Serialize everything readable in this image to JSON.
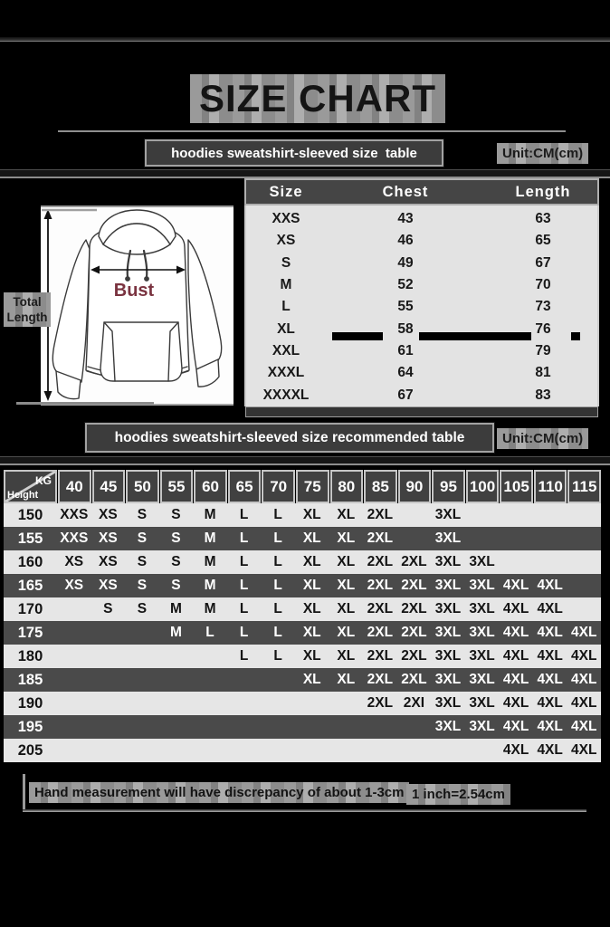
{
  "title": "SIZE CHART",
  "colors": {
    "bust_label": "#7a3340",
    "accent_dark": "#414141",
    "row_light": "#e6e6e6",
    "row_dark": "#4a4a4a"
  },
  "section1": {
    "header": "hoodies sweatshirt-sleeved size  table",
    "unit": "Unit:CM(cm)",
    "diagram": {
      "bust_label": "Bust",
      "length_label": "Total Length"
    },
    "table": {
      "columns": [
        "Size",
        "Chest",
        "Length"
      ],
      "rows": [
        [
          "XXS",
          "43",
          "63"
        ],
        [
          "XS",
          "46",
          "65"
        ],
        [
          "S",
          "49",
          "67"
        ],
        [
          "M",
          "52",
          "70"
        ],
        [
          "L",
          "55",
          "73"
        ],
        [
          "XL",
          "58",
          "76"
        ],
        [
          "XXL",
          "61",
          "79"
        ],
        [
          "XXXL",
          "64",
          "81"
        ],
        [
          "XXXXL",
          "67",
          "83"
        ]
      ]
    }
  },
  "section2": {
    "header": "hoodies sweatshirt-sleeved size recommended table",
    "unit": "Unit:CM(cm)",
    "matrix": {
      "corner": {
        "top": "KG",
        "bottom": "Height"
      },
      "weights": [
        "40",
        "45",
        "50",
        "55",
        "60",
        "65",
        "70",
        "75",
        "80",
        "85",
        "90",
        "95",
        "100",
        "105",
        "110",
        "115"
      ],
      "rows": [
        {
          "height": "150",
          "cells": [
            "XXS",
            "XS",
            "S",
            "S",
            "M",
            "L",
            "L",
            "XL",
            "XL",
            "2XL",
            "",
            "3XL",
            "",
            "",
            "",
            ""
          ]
        },
        {
          "height": "155",
          "cells": [
            "XXS",
            "XS",
            "S",
            "S",
            "M",
            "L",
            "L",
            "XL",
            "XL",
            "2XL",
            "",
            "3XL",
            "",
            "",
            "",
            ""
          ]
        },
        {
          "height": "160",
          "cells": [
            "XS",
            "XS",
            "S",
            "S",
            "M",
            "L",
            "L",
            "XL",
            "XL",
            "2XL",
            "2XL",
            "3XL",
            "3XL",
            "",
            "",
            ""
          ]
        },
        {
          "height": "165",
          "cells": [
            "XS",
            "XS",
            "S",
            "S",
            "M",
            "L",
            "L",
            "XL",
            "XL",
            "2XL",
            "2XL",
            "3XL",
            "3XL",
            "4XL",
            "4XL",
            ""
          ]
        },
        {
          "height": "170",
          "cells": [
            "",
            "S",
            "S",
            "M",
            "M",
            "L",
            "L",
            "XL",
            "XL",
            "2XL",
            "2XL",
            "3XL",
            "3XL",
            "4XL",
            "4XL",
            ""
          ]
        },
        {
          "height": "175",
          "cells": [
            "",
            "",
            "",
            "M",
            "L",
            "L",
            "L",
            "XL",
            "XL",
            "2XL",
            "2XL",
            "3XL",
            "3XL",
            "4XL",
            "4XL",
            "4XL"
          ]
        },
        {
          "height": "180",
          "cells": [
            "",
            "",
            "",
            "",
            "",
            "L",
            "L",
            "XL",
            "XL",
            "2XL",
            "2XL",
            "3XL",
            "3XL",
            "4XL",
            "4XL",
            "4XL"
          ]
        },
        {
          "height": "185",
          "cells": [
            "",
            "",
            "",
            "",
            "",
            "",
            "",
            "XL",
            "XL",
            "2XL",
            "2XL",
            "3XL",
            "3XL",
            "4XL",
            "4XL",
            "4XL"
          ]
        },
        {
          "height": "190",
          "cells": [
            "",
            "",
            "",
            "",
            "",
            "",
            "",
            "",
            "",
            "2XL",
            "2XI",
            "3XL",
            "3XL",
            "4XL",
            "4XL",
            "4XL"
          ]
        },
        {
          "height": "195",
          "cells": [
            "",
            "",
            "",
            "",
            "",
            "",
            "",
            "",
            "",
            "",
            "",
            "3XL",
            "3XL",
            "4XL",
            "4XL",
            "4XL"
          ]
        },
        {
          "height": "205",
          "cells": [
            "",
            "",
            "",
            "",
            "",
            "",
            "",
            "",
            "",
            "",
            "",
            "",
            "",
            "4XL",
            "4XL",
            "4XL"
          ]
        }
      ]
    }
  },
  "footer": {
    "note": "Hand measurement will have discrepancy of about 1-3cm",
    "conversion": "1 inch=2.54cm"
  }
}
